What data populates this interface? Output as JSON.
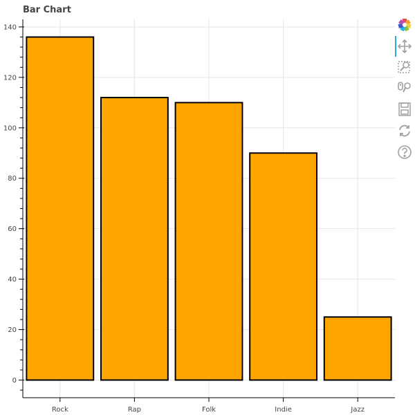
{
  "chart_data": {
    "type": "bar",
    "title": "Bar Chart",
    "categories": [
      "Rock",
      "Rap",
      "Folk",
      "Indie",
      "Jazz"
    ],
    "values": [
      136,
      112,
      110,
      90,
      25
    ],
    "xlabel": "",
    "ylabel": "",
    "ylim": [
      -7,
      143
    ],
    "yticks": [
      0,
      20,
      40,
      60,
      80,
      100,
      120,
      140
    ],
    "bar_color": "#FFA500",
    "bar_outline_color": "#000000",
    "grid": true,
    "legend": "none"
  },
  "toolbar": {
    "tools": [
      {
        "icon": "bokeh-logo-icon"
      },
      {
        "icon": "pan-icon"
      },
      {
        "icon": "box-zoom-icon"
      },
      {
        "icon": "wheel-zoom-icon"
      },
      {
        "icon": "save-icon"
      },
      {
        "icon": "reset-icon"
      },
      {
        "icon": "help-icon"
      }
    ],
    "accent_color": "#26aae1",
    "icon_color": "#a0a0a0"
  }
}
